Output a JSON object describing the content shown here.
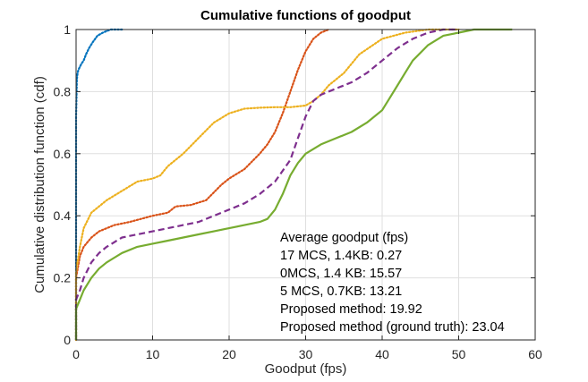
{
  "chart_data": {
    "type": "line",
    "title": "Cumulative functions of goodput",
    "xlabel": "Goodput (fps)",
    "ylabel": "Cumulative distribution function (cdf)",
    "xlim": [
      0,
      60
    ],
    "ylim": [
      0,
      1
    ],
    "xticks": [
      0,
      10,
      20,
      30,
      40,
      50,
      60
    ],
    "yticks": [
      0,
      0.2,
      0.4,
      0.6,
      0.8,
      1
    ],
    "grid": true,
    "annotation": {
      "title": "Average goodput (fps)",
      "lines": [
        "17 MCS, 1.4KB: 0.27",
        "0MCS, 1.4 KB: 15.57",
        "5 MCS, 0.7KB: 13.21",
        "Proposed method: 19.92",
        "Proposed method (ground truth): 23.04"
      ]
    },
    "series": [
      {
        "name": "17 MCS, 1.4KB",
        "color": "#0072BD",
        "style": "dotted",
        "x": [
          0,
          0,
          0.1,
          0.2,
          0.3,
          0.5,
          0.7,
          1.0,
          1.3,
          1.7,
          2.2,
          2.8,
          3.5,
          4.5,
          6.0
        ],
        "y": [
          0,
          0.72,
          0.84,
          0.86,
          0.87,
          0.88,
          0.89,
          0.9,
          0.92,
          0.94,
          0.96,
          0.98,
          0.99,
          1.0,
          1.0
        ]
      },
      {
        "name": "0MCS, 1.4 KB",
        "color": "#D95319",
        "style": "dotted",
        "x": [
          0,
          0,
          0.5,
          1,
          2,
          3,
          5,
          7,
          10,
          12,
          13,
          15,
          17,
          19,
          20,
          22,
          24,
          25,
          26,
          27,
          28,
          29,
          30,
          31,
          32,
          33
        ],
        "y": [
          0,
          0.2,
          0.27,
          0.3,
          0.33,
          0.35,
          0.37,
          0.38,
          0.4,
          0.41,
          0.43,
          0.435,
          0.45,
          0.5,
          0.52,
          0.55,
          0.6,
          0.63,
          0.67,
          0.73,
          0.8,
          0.87,
          0.93,
          0.97,
          0.99,
          1.0
        ]
      },
      {
        "name": "5 MCS, 0.7KB",
        "color": "#EDB120",
        "style": "dotted",
        "x": [
          0,
          0,
          0.5,
          1,
          2,
          4,
          6,
          8,
          10,
          11,
          12,
          14,
          16,
          18,
          20,
          22,
          24,
          26,
          28,
          30,
          31,
          32,
          33,
          35,
          37,
          40,
          43,
          46,
          50
        ],
        "y": [
          0,
          0.22,
          0.3,
          0.36,
          0.41,
          0.45,
          0.48,
          0.51,
          0.52,
          0.53,
          0.56,
          0.6,
          0.65,
          0.7,
          0.73,
          0.745,
          0.748,
          0.75,
          0.75,
          0.755,
          0.77,
          0.79,
          0.82,
          0.86,
          0.92,
          0.97,
          0.99,
          1.0,
          1.0
        ]
      },
      {
        "name": "Proposed method",
        "color": "#7E2F8E",
        "style": "dashed",
        "x": [
          0,
          0,
          0.5,
          1,
          2,
          3,
          4,
          6,
          8,
          10,
          12,
          14,
          16,
          18,
          20,
          22,
          24,
          26,
          28,
          29,
          30,
          31,
          32,
          34,
          36,
          38,
          40,
          42,
          44,
          46,
          48,
          50
        ],
        "y": [
          0,
          0.13,
          0.16,
          0.2,
          0.25,
          0.28,
          0.3,
          0.33,
          0.34,
          0.35,
          0.36,
          0.37,
          0.38,
          0.4,
          0.42,
          0.44,
          0.47,
          0.51,
          0.58,
          0.65,
          0.72,
          0.77,
          0.79,
          0.81,
          0.83,
          0.86,
          0.9,
          0.94,
          0.97,
          0.99,
          1.0,
          1.0
        ]
      },
      {
        "name": "Proposed method (ground truth)",
        "color": "#77AC30",
        "style": "solid",
        "x": [
          0,
          0,
          0.5,
          1,
          2,
          3,
          4,
          6,
          8,
          10,
          12,
          14,
          16,
          18,
          20,
          22,
          24,
          25,
          26,
          27,
          28,
          29,
          30,
          32,
          34,
          36,
          38,
          40,
          41,
          42,
          43,
          44,
          46,
          48,
          50,
          52,
          55,
          57
        ],
        "y": [
          0,
          0.1,
          0.13,
          0.16,
          0.2,
          0.23,
          0.25,
          0.28,
          0.3,
          0.31,
          0.32,
          0.33,
          0.34,
          0.35,
          0.36,
          0.37,
          0.38,
          0.39,
          0.42,
          0.47,
          0.53,
          0.57,
          0.6,
          0.63,
          0.65,
          0.67,
          0.7,
          0.74,
          0.78,
          0.82,
          0.86,
          0.9,
          0.95,
          0.98,
          0.99,
          1.0,
          1.0,
          1.0
        ]
      }
    ]
  }
}
